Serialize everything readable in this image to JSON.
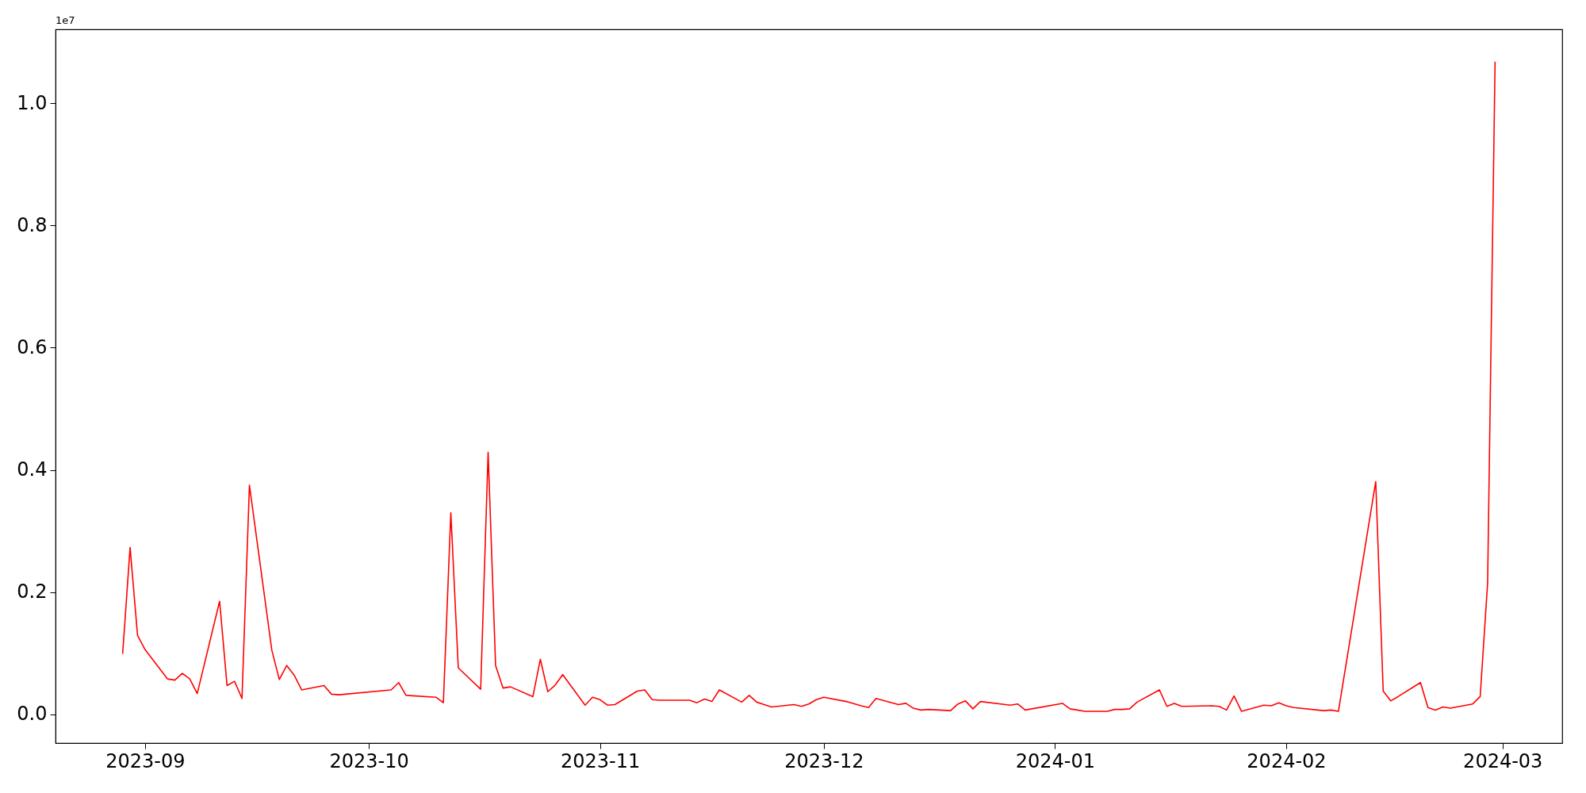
{
  "chart_data": {
    "type": "line",
    "annotations": [
      "1e7"
    ],
    "x": [
      "2023-08-29",
      "2023-08-30",
      "2023-08-31",
      "2023-09-01",
      "2023-09-04",
      "2023-09-05",
      "2023-09-06",
      "2023-09-07",
      "2023-09-08",
      "2023-09-11",
      "2023-09-12",
      "2023-09-13",
      "2023-09-14",
      "2023-09-15",
      "2023-09-18",
      "2023-09-19",
      "2023-09-20",
      "2023-09-21",
      "2023-09-22",
      "2023-09-25",
      "2023-09-26",
      "2023-09-27",
      "2023-10-04",
      "2023-10-05",
      "2023-10-06",
      "2023-10-10",
      "2023-10-11",
      "2023-10-12",
      "2023-10-13",
      "2023-10-16",
      "2023-10-17",
      "2023-10-18",
      "2023-10-19",
      "2023-10-20",
      "2023-10-23",
      "2023-10-24",
      "2023-10-25",
      "2023-10-26",
      "2023-10-27",
      "2023-10-30",
      "2023-10-31",
      "2023-11-01",
      "2023-11-02",
      "2023-11-03",
      "2023-11-06",
      "2023-11-07",
      "2023-11-08",
      "2023-11-09",
      "2023-11-10",
      "2023-11-13",
      "2023-11-14",
      "2023-11-15",
      "2023-11-16",
      "2023-11-17",
      "2023-11-20",
      "2023-11-21",
      "2023-11-22",
      "2023-11-23",
      "2023-11-24",
      "2023-11-27",
      "2023-11-28",
      "2023-11-29",
      "2023-11-30",
      "2023-12-01",
      "2023-12-04",
      "2023-12-06",
      "2023-12-07",
      "2023-12-08",
      "2023-12-11",
      "2023-12-12",
      "2023-12-13",
      "2023-12-14",
      "2023-12-15",
      "2023-12-18",
      "2023-12-19",
      "2023-12-20",
      "2023-12-21",
      "2023-12-22",
      "2023-12-26",
      "2023-12-27",
      "2023-12-28",
      "2024-01-02",
      "2024-01-03",
      "2024-01-04",
      "2024-01-05",
      "2024-01-08",
      "2024-01-09",
      "2024-01-10",
      "2024-01-11",
      "2024-01-12",
      "2024-01-15",
      "2024-01-16",
      "2024-01-17",
      "2024-01-18",
      "2024-01-22",
      "2024-01-23",
      "2024-01-24",
      "2024-01-25",
      "2024-01-26",
      "2024-01-29",
      "2024-01-30",
      "2024-01-31",
      "2024-02-01",
      "2024-02-02",
      "2024-02-06",
      "2024-02-07",
      "2024-02-08",
      "2024-02-13",
      "2024-02-14",
      "2024-02-15",
      "2024-02-16",
      "2024-02-19",
      "2024-02-20",
      "2024-02-21",
      "2024-02-22",
      "2024-02-23",
      "2024-02-26",
      "2024-02-27",
      "2024-02-28",
      "2024-02-29"
    ],
    "series": [
      {
        "color": "#ff0000",
        "values": [
          0.099,
          0.273,
          0.129,
          0.106,
          0.058,
          0.056,
          0.067,
          0.058,
          0.034,
          0.185,
          0.047,
          0.054,
          0.026,
          0.375,
          0.105,
          0.057,
          0.08,
          0.064,
          0.04,
          0.047,
          0.033,
          0.032,
          0.04,
          0.052,
          0.031,
          0.028,
          0.019,
          0.33,
          0.076,
          0.041,
          0.429,
          0.08,
          0.043,
          0.045,
          0.029,
          0.09,
          0.037,
          0.048,
          0.065,
          0.015,
          0.028,
          0.024,
          0.015,
          0.016,
          0.038,
          0.04,
          0.024,
          0.023,
          0.023,
          0.023,
          0.019,
          0.025,
          0.021,
          0.04,
          0.02,
          0.031,
          0.02,
          0.016,
          0.012,
          0.016,
          0.013,
          0.017,
          0.024,
          0.028,
          0.021,
          0.014,
          0.011,
          0.026,
          0.016,
          0.018,
          0.01,
          0.007,
          0.008,
          0.006,
          0.017,
          0.022,
          0.009,
          0.021,
          0.015,
          0.017,
          0.007,
          0.018,
          0.009,
          0.007,
          0.005,
          0.005,
          0.008,
          0.008,
          0.009,
          0.02,
          0.04,
          0.013,
          0.018,
          0.013,
          0.014,
          0.013,
          0.007,
          0.03,
          0.005,
          0.015,
          0.014,
          0.019,
          0.014,
          0.011,
          0.006,
          0.007,
          0.005,
          0.381,
          0.038,
          0.022,
          0.029,
          0.052,
          0.011,
          0.007,
          0.012,
          0.01,
          0.017,
          0.029,
          0.215,
          1.068
        ]
      }
    ],
    "xlim": [
      "2023-08-20",
      "2024-03-09"
    ],
    "xticks": [
      {
        "value": "2023-09",
        "label": "2023-09"
      },
      {
        "value": "2023-10",
        "label": "2023-10"
      },
      {
        "value": "2023-11",
        "label": "2023-11"
      },
      {
        "value": "2023-12",
        "label": "2023-12"
      },
      {
        "value": "2024-01",
        "label": "2024-01"
      },
      {
        "value": "2024-02",
        "label": "2024-02"
      },
      {
        "value": "2024-03",
        "label": "2024-03"
      }
    ],
    "ylim": [
      -0.047,
      1.121
    ],
    "yticks": [
      {
        "value": 0,
        "label": "0.0"
      },
      0.2,
      0.4,
      0.6,
      0.8,
      {
        "value": 1,
        "label": "1.0"
      }
    ],
    "grid": false,
    "legend": false,
    "marker": "none",
    "line_style": "solid"
  }
}
